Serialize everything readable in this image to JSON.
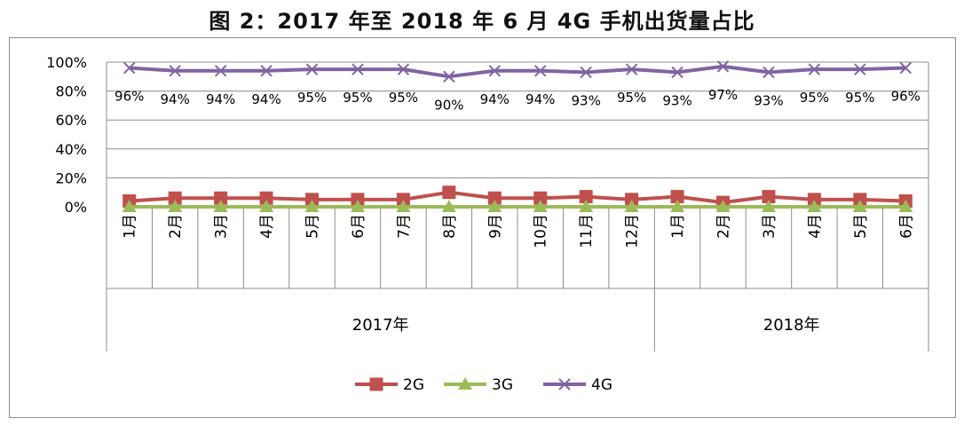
{
  "title": "图 2：2017 年至 2018 年 6 月 4G 手机出货量占比",
  "colors": {
    "2G": "#c0504d",
    "3G": "#9bbb59",
    "4G": "#8064a2",
    "grid": "#8c8c8c"
  },
  "chart_data": {
    "type": "line",
    "title": "图 2：2017 年至 2018 年 6 月 4G 手机出货量占比",
    "categories": [
      "1月",
      "2月",
      "3月",
      "4月",
      "5月",
      "6月",
      "7月",
      "8月",
      "9月",
      "10月",
      "11月",
      "12月",
      "1月",
      "2月",
      "3月",
      "4月",
      "5月",
      "6月"
    ],
    "groups": [
      {
        "label": "2017年",
        "count": 12
      },
      {
        "label": "2018年",
        "count": 6
      }
    ],
    "y_ticks": [
      "0%",
      "20%",
      "40%",
      "60%",
      "80%",
      "100%"
    ],
    "ylim": [
      0,
      100
    ],
    "grid": true,
    "legend_position": "bottom",
    "series": [
      {
        "name": "2G",
        "marker": "square",
        "values": [
          4,
          6,
          6,
          6,
          5,
          5,
          5,
          10,
          6,
          6,
          7,
          5,
          7,
          3,
          7,
          5,
          5,
          4
        ]
      },
      {
        "name": "3G",
        "marker": "triangle",
        "values": [
          0,
          0,
          0,
          0,
          0,
          0,
          0,
          0,
          0,
          0,
          0,
          0,
          0,
          0,
          0,
          0,
          0,
          0
        ]
      },
      {
        "name": "4G",
        "marker": "x",
        "values": [
          96,
          94,
          94,
          94,
          95,
          95,
          95,
          90,
          94,
          94,
          93,
          95,
          93,
          97,
          93,
          95,
          95,
          96
        ],
        "data_labels": [
          "96%",
          "94%",
          "94%",
          "94%",
          "95%",
          "95%",
          "95%",
          "90%",
          "94%",
          "94%",
          "93%",
          "95%",
          "93%",
          "97%",
          "93%",
          "95%",
          "95%",
          "96%"
        ]
      }
    ]
  }
}
